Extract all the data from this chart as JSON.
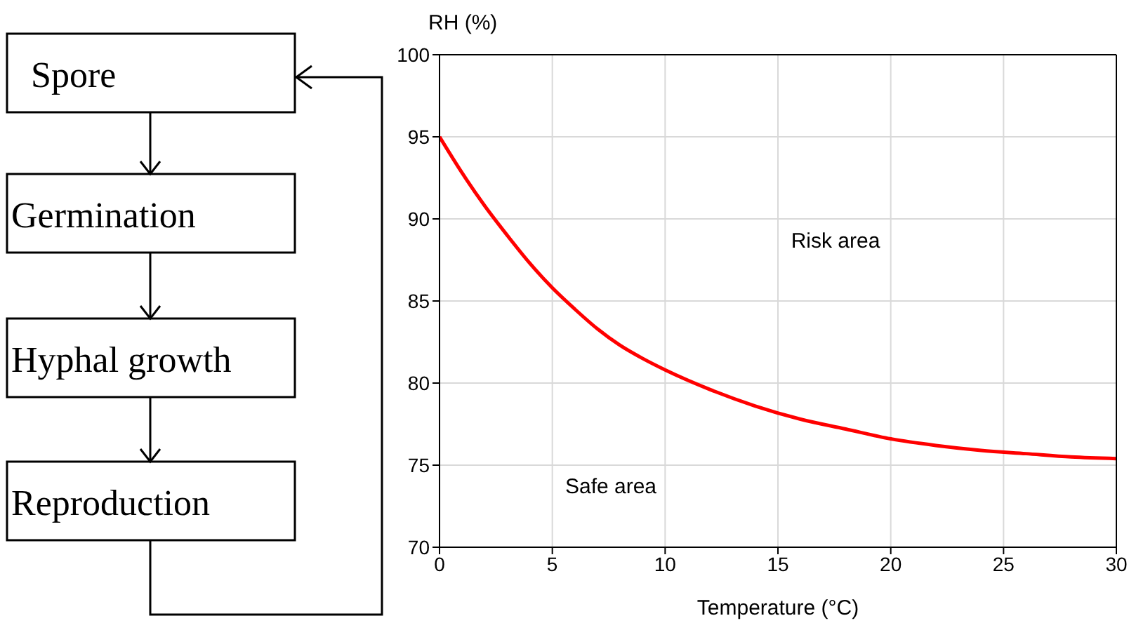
{
  "chart_data": [
    {
      "type": "other",
      "annotations": [
        "Spore",
        "Germination",
        "Hyphal growth",
        "Reproduction"
      ]
    },
    {
      "type": "line",
      "xlabel": "Temperature (°C)",
      "ylabel": "RH (%)",
      "x": [
        0,
        1,
        2,
        3,
        4,
        5,
        6,
        7,
        8,
        9,
        10,
        12,
        14,
        16,
        18,
        20,
        22,
        24,
        26,
        28,
        30
      ],
      "series": [
        {
          "color": "#ff0000",
          "values": [
            95,
            92.8,
            90.8,
            89,
            87.3,
            85.8,
            84.5,
            83.3,
            82.3,
            81.5,
            80.8,
            79.6,
            78.6,
            77.8,
            77.2,
            76.6,
            76.2,
            75.9,
            75.7,
            75.5,
            75.4
          ]
        }
      ],
      "xlim": [
        0,
        30
      ],
      "xticks": [
        0,
        5,
        10,
        15,
        20,
        25,
        30
      ],
      "ylim": [
        70,
        100
      ],
      "yticks": [
        70,
        75,
        80,
        85,
        90,
        95,
        100
      ],
      "grid": true,
      "annotations": [
        "Risk area",
        "Safe area"
      ]
    }
  ]
}
